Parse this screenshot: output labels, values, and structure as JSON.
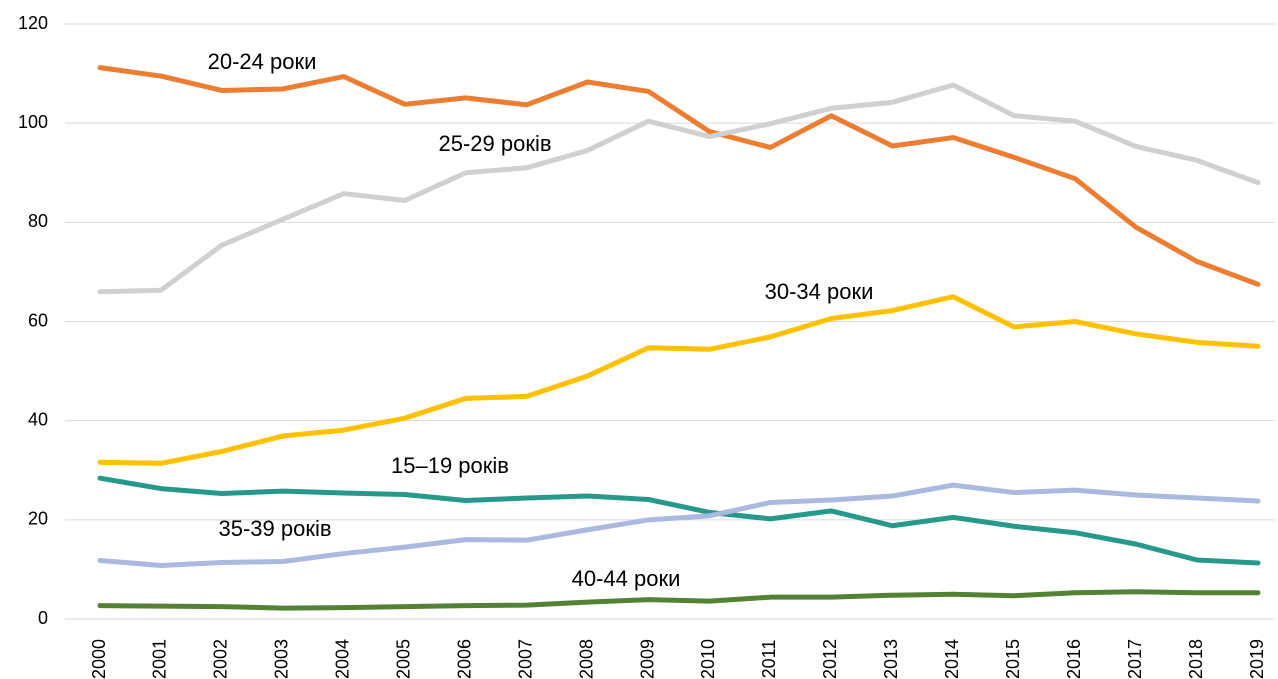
{
  "chart_data": {
    "type": "line",
    "categories": [
      "2000",
      "2001",
      "2002",
      "2003",
      "2004",
      "2005",
      "2006",
      "2007",
      "2008",
      "2009",
      "2010",
      "2011",
      "2012",
      "2013",
      "2014",
      "2015",
      "2016",
      "2017",
      "2018",
      "2019"
    ],
    "series": [
      {
        "name": "20-24 роки",
        "color": "#ed7d31",
        "values": [
          111.2,
          109.5,
          106.6,
          106.9,
          109.4,
          103.8,
          105.1,
          103.7,
          108.3,
          106.4,
          98.3,
          95.1,
          101.5,
          95.4,
          97.1,
          93.1,
          88.8,
          79.0,
          72.1,
          67.5
        ]
      },
      {
        "name": "25-29 років",
        "color": "#d0d0d0",
        "values": [
          66.0,
          66.3,
          75.4,
          80.6,
          85.8,
          84.4,
          90.0,
          91.0,
          94.5,
          100.4,
          97.3,
          99.9,
          103.0,
          104.2,
          107.7,
          101.5,
          100.4,
          95.3,
          92.5,
          88.0
        ]
      },
      {
        "name": "30-34 роки",
        "color": "#ffc000",
        "values": [
          31.6,
          31.4,
          33.8,
          36.9,
          38.1,
          40.5,
          44.5,
          44.9,
          49.0,
          54.7,
          54.4,
          56.9,
          60.6,
          62.2,
          65.0,
          58.9,
          60.0,
          57.5,
          55.8,
          55.0
        ]
      },
      {
        "name": "15–19 років",
        "color": "#27998b",
        "values": [
          28.4,
          26.3,
          25.3,
          25.8,
          25.4,
          25.1,
          23.9,
          24.4,
          24.8,
          24.1,
          21.5,
          20.2,
          21.8,
          18.8,
          20.5,
          18.7,
          17.4,
          15.1,
          11.9,
          11.3
        ]
      },
      {
        "name": "35-39 років",
        "color": "#a9b9e0",
        "values": [
          11.8,
          10.8,
          11.4,
          11.6,
          13.2,
          14.5,
          16.0,
          15.9,
          18.0,
          20.0,
          20.8,
          23.5,
          24.0,
          24.8,
          27.0,
          25.5,
          26.0,
          25.0,
          24.4,
          23.8
        ]
      },
      {
        "name": "40-44 роки",
        "color": "#548235",
        "values": [
          2.7,
          2.6,
          2.5,
          2.2,
          2.3,
          2.5,
          2.7,
          2.8,
          3.4,
          3.9,
          3.6,
          4.4,
          4.4,
          4.8,
          5.0,
          4.7,
          5.3,
          5.5,
          5.3,
          5.3
        ]
      }
    ],
    "ylim": [
      0,
      120
    ],
    "yticks": [
      0,
      20,
      40,
      60,
      80,
      100,
      120
    ],
    "grid": true
  }
}
